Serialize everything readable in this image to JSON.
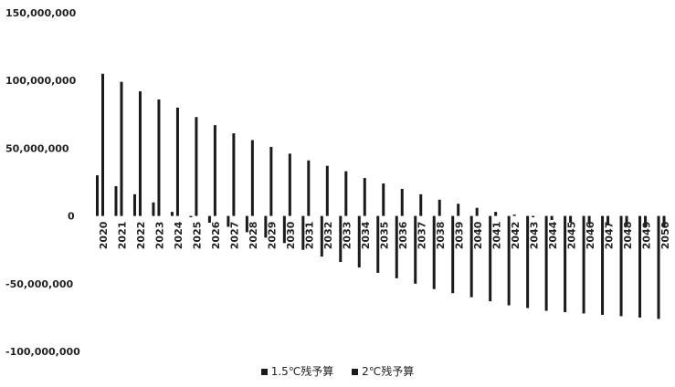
{
  "chart_data": {
    "type": "bar",
    "categories": [
      "2020",
      "2021",
      "2022",
      "2023",
      "2024",
      "2025",
      "2026",
      "2027",
      "2028",
      "2029",
      "2030",
      "2031",
      "2032",
      "2033",
      "2034",
      "2035",
      "2036",
      "2037",
      "2038",
      "2039",
      "2040",
      "2041",
      "2042",
      "2043",
      "2044",
      "2045",
      "2046",
      "2047",
      "2048",
      "2049",
      "2050"
    ],
    "series": [
      {
        "name": "1.5℃残予算",
        "values": [
          30000000,
          22000000,
          16000000,
          10000000,
          3000000,
          -1000000,
          -5000000,
          -8000000,
          -12000000,
          -16000000,
          -20000000,
          -25000000,
          -30000000,
          -34000000,
          -38000000,
          -42000000,
          -46000000,
          -50000000,
          -54000000,
          -57000000,
          -60000000,
          -63000000,
          -66000000,
          -68000000,
          -70000000,
          -71000000,
          -72000000,
          -73000000,
          -74000000,
          -75000000,
          -76000000
        ]
      },
      {
        "name": "2℃残予算",
        "values": [
          105000000,
          99000000,
          92000000,
          86000000,
          80000000,
          73000000,
          67000000,
          61000000,
          56000000,
          51000000,
          46000000,
          41000000,
          37000000,
          33000000,
          28000000,
          24000000,
          20000000,
          16000000,
          12000000,
          9000000,
          6000000,
          3000000,
          1000000,
          -1000000,
          -3000000,
          -5000000,
          -6000000,
          -7000000,
          -7500000,
          -8000000,
          -8500000
        ]
      }
    ],
    "ylim": [
      -100000000,
      150000000
    ],
    "yticks": [
      "150,000,000",
      "100,000,000",
      "50,000,000",
      "0",
      "-50,000,000",
      "-100,000,000"
    ],
    "ytick_values": [
      150000000,
      100000000,
      50000000,
      0,
      -50000000,
      -100000000
    ],
    "colors": [
      "#1a1a1a",
      "#1a1a1a"
    ],
    "legend_position": "bottom",
    "grid": false
  }
}
